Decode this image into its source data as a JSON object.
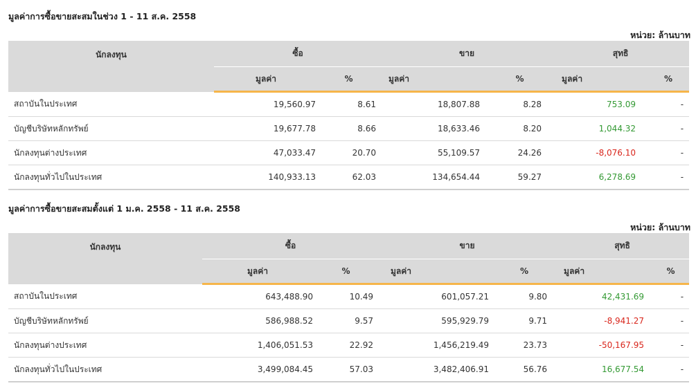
{
  "sections": [
    {
      "title": "มูลค่าการซื้อขายสะสมในช่วง 1 - 11 ส.ค. 2558",
      "unit": "หน่วย: ล้านบาท",
      "headers": {
        "investor": "นักลงทุน",
        "buy": "ซื้อ",
        "sell": "ขาย",
        "net": "สุทธิ",
        "value": "มูลค่า",
        "percent": "%"
      },
      "rows": [
        {
          "name": "สถาบันในประเทศ",
          "buy": "19,560.97",
          "buy_pct": "8.61",
          "sell": "18,807.88",
          "sell_pct": "8.28",
          "net": "753.09",
          "net_sign": "pos",
          "net_pct": "-"
        },
        {
          "name": "บัญชีบริษัทหลักทรัพย์",
          "buy": "19,677.78",
          "buy_pct": "8.66",
          "sell": "18,633.46",
          "sell_pct": "8.20",
          "net": "1,044.32",
          "net_sign": "pos",
          "net_pct": "-"
        },
        {
          "name": "นักลงทุนต่างประเทศ",
          "buy": "47,033.47",
          "buy_pct": "20.70",
          "sell": "55,109.57",
          "sell_pct": "24.26",
          "net": "-8,076.10",
          "net_sign": "neg",
          "net_pct": "-"
        },
        {
          "name": "นักลงทุนทั่วไปในประเทศ",
          "buy": "140,933.13",
          "buy_pct": "62.03",
          "sell": "134,654.44",
          "sell_pct": "59.27",
          "net": "6,278.69",
          "net_sign": "pos",
          "net_pct": "-"
        }
      ]
    },
    {
      "title": "มูลค่าการซื้อขายสะสมตั้งแต่ 1 ม.ค. 2558 - 11 ส.ค. 2558",
      "unit": "หน่วย: ล้านบาท",
      "headers": {
        "investor": "นักลงทุน",
        "buy": "ซื้อ",
        "sell": "ขาย",
        "net": "สุทธิ",
        "value": "มูลค่า",
        "percent": "%"
      },
      "rows": [
        {
          "name": "สถาบันในประเทศ",
          "buy": "643,488.90",
          "buy_pct": "10.49",
          "sell": "601,057.21",
          "sell_pct": "9.80",
          "net": "42,431.69",
          "net_sign": "pos",
          "net_pct": "-"
        },
        {
          "name": "บัญชีบริษัทหลักทรัพย์",
          "buy": "586,988.52",
          "buy_pct": "9.57",
          "sell": "595,929.79",
          "sell_pct": "9.71",
          "net": "-8,941.27",
          "net_sign": "neg",
          "net_pct": "-"
        },
        {
          "name": "นักลงทุนต่างประเทศ",
          "buy": "1,406,051.53",
          "buy_pct": "22.92",
          "sell": "1,456,219.49",
          "sell_pct": "23.73",
          "net": "-50,167.95",
          "net_sign": "neg",
          "net_pct": "-"
        },
        {
          "name": "นักลงทุนทั่วไปในประเทศ",
          "buy": "3,499,084.45",
          "buy_pct": "57.03",
          "sell": "3,482,406.91",
          "sell_pct": "56.76",
          "net": "16,677.54",
          "net_sign": "pos",
          "net_pct": "-"
        }
      ]
    }
  ],
  "colors": {
    "positive": "#339933",
    "negative": "#d9261c",
    "header_bg": "#dadada",
    "accent_underline": "#f6b54a"
  }
}
